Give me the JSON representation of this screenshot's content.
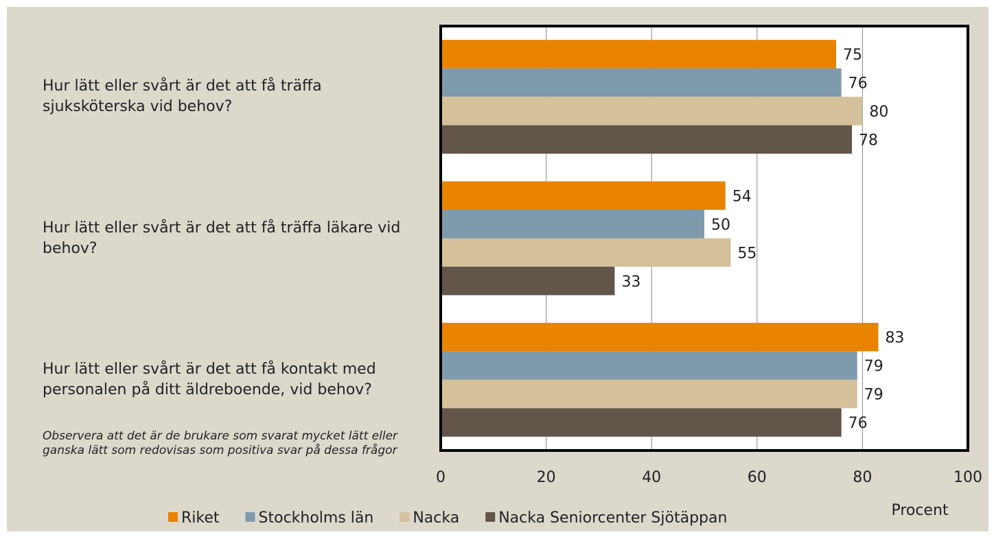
{
  "chart_data": {
    "type": "barh",
    "categories": [
      "Hur lätt eller svårt är det att få träffa sjuksköterska vid behov?",
      "Hur lätt eller svårt är det att få träffa läkare vid behov?",
      "Hur lätt eller svårt är det att få kontakt med personalen på ditt äldreboende, vid behov?"
    ],
    "series": [
      {
        "name": "Riket",
        "color": "#e98300",
        "values": [
          75,
          54,
          83
        ]
      },
      {
        "name": "Stockholms län",
        "color": "#7f9aab",
        "values": [
          76,
          50,
          79
        ]
      },
      {
        "name": "Nacka",
        "color": "#d4c09a",
        "values": [
          80,
          55,
          79
        ]
      },
      {
        "name": "Nacka Seniorcenter Sjötäppan",
        "color": "#62554a",
        "values": [
          78,
          33,
          76
        ]
      }
    ],
    "xlim": [
      0,
      100
    ],
    "xticks": [
      0,
      20,
      40,
      60,
      80,
      100
    ],
    "grid": true,
    "xlabel": "Procent",
    "annotation": "Observera att det är de brukare som svarat mycket lätt eller ganska lätt som redovisas som positiva svar på dessa frågor",
    "legend": "bottom"
  }
}
